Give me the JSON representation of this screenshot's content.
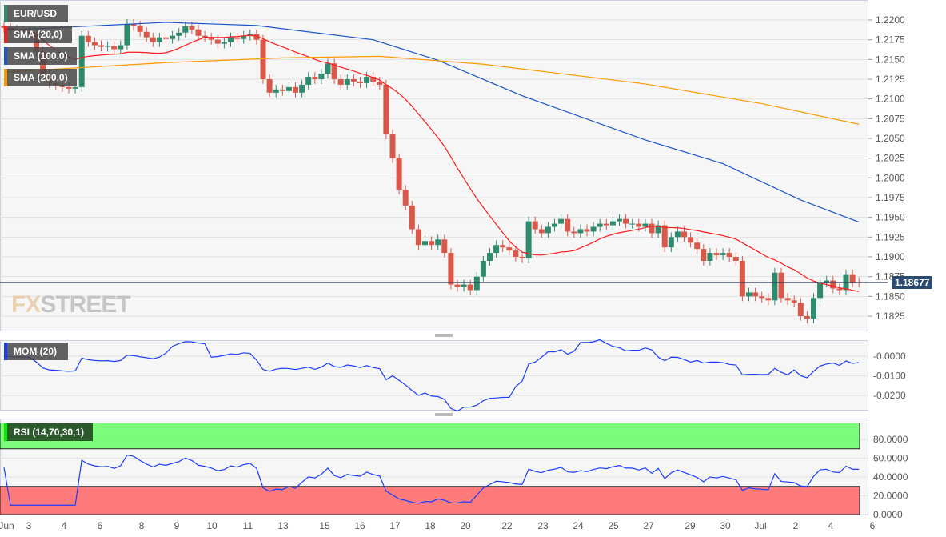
{
  "chart_data": {
    "type": "candlestick",
    "symbol": "EUR/USD",
    "last_price": "1.18677",
    "legend": [
      {
        "label": "SMA (20,0)",
        "color": "#ff1a1a"
      },
      {
        "label": "SMA (100,0)",
        "color": "#1a56c8"
      },
      {
        "label": "SMA (200,0)",
        "color": "#ff9900"
      }
    ],
    "colors": {
      "up": "#2e8b6e",
      "down": "#d9584a",
      "mom": "#1a3cff",
      "rsi": "#1a3cff",
      "overbought": "#66ff66",
      "oversold": "#ff6666"
    },
    "price_ticks": [
      "1.2200",
      "1.2175",
      "1.2150",
      "1.2125",
      "1.2100",
      "1.2075",
      "1.2050",
      "1.2025",
      "1.2000",
      "1.1975",
      "1.1950",
      "1.1925",
      "1.1900",
      "1.1875",
      "1.1850",
      "1.1825"
    ],
    "x_labels": [
      "Jun",
      "3",
      "4",
      "6",
      "8",
      "9",
      "10",
      "11",
      "13",
      "15",
      "16",
      "17",
      "18",
      "20",
      "22",
      "23",
      "24",
      "25",
      "27",
      "29",
      "30",
      "Jul",
      "2",
      "4",
      "6"
    ],
    "closes": [
      1.219,
      1.2188,
      1.2186,
      1.2185,
      1.2183,
      1.216,
      1.213,
      1.212,
      1.2118,
      1.2115,
      1.2113,
      1.2115,
      1.218,
      1.2172,
      1.2168,
      1.2166,
      1.2167,
      1.2163,
      1.2168,
      1.2195,
      1.2193,
      1.2185,
      1.2178,
      1.2172,
      1.2178,
      1.2176,
      1.218,
      1.2184,
      1.2192,
      1.2188,
      1.218,
      1.2178,
      1.2175,
      1.217,
      1.2172,
      1.2178,
      1.2176,
      1.218,
      1.2182,
      1.2175,
      1.2125,
      1.2108,
      1.2112,
      1.211,
      1.2115,
      1.2108,
      1.2118,
      1.2128,
      1.2125,
      1.2132,
      1.2145,
      1.2125,
      1.2118,
      1.2125,
      1.2122,
      1.212,
      1.2128,
      1.2122,
      1.2118,
      1.2055,
      1.2025,
      1.1985,
      1.1965,
      1.1935,
      1.1915,
      1.192,
      1.1915,
      1.1922,
      1.1905,
      1.1865,
      1.1862,
      1.1865,
      1.1858,
      1.1875,
      1.1895,
      1.1905,
      1.1915,
      1.1912,
      1.1908,
      1.19,
      1.1898,
      1.1945,
      1.1935,
      1.193,
      1.1938,
      1.1942,
      1.1948,
      1.1932,
      1.193,
      1.1935,
      1.1932,
      1.1938,
      1.1942,
      1.194,
      1.1945,
      1.1948,
      1.1942,
      1.1942,
      1.1938,
      1.1942,
      1.193,
      1.194,
      1.1912,
      1.1925,
      1.1932,
      1.1925,
      1.1918,
      1.191,
      1.1895,
      1.1905,
      1.1902,
      1.1905,
      1.19,
      1.1895,
      1.185,
      1.1855,
      1.185,
      1.1848,
      1.1845,
      1.188,
      1.1848,
      1.1845,
      1.1842,
      1.1825,
      1.1822,
      1.1848,
      1.1868,
      1.187,
      1.186,
      1.1858,
      1.1878,
      1.1868,
      1.18677
    ],
    "sma100": [
      [
        0,
        1.2187
      ],
      [
        25,
        1.2197
      ],
      [
        39,
        1.2193
      ],
      [
        57,
        1.2175
      ],
      [
        67,
        1.2149
      ],
      [
        80,
        1.2104
      ],
      [
        99,
        1.2048
      ],
      [
        111,
        1.2018
      ],
      [
        123,
        1.1972
      ],
      [
        132,
        1.1944
      ]
    ],
    "sma200": [
      [
        0,
        1.2134
      ],
      [
        25,
        1.2146
      ],
      [
        43,
        1.2152
      ],
      [
        58,
        1.2154
      ],
      [
        74,
        1.2144
      ],
      [
        99,
        1.2119
      ],
      [
        117,
        1.2094
      ],
      [
        132,
        1.2068
      ]
    ],
    "momentum": {
      "label": "MOM (20)",
      "ticks": [
        "-0.0000",
        "-0.0100",
        "-0.0200"
      ]
    },
    "rsi": {
      "label": "RSI (14,70,30,1)",
      "ticks": [
        "80.0000",
        "60.0000",
        "40.0000",
        "20.0000",
        "0.0000"
      ]
    }
  }
}
